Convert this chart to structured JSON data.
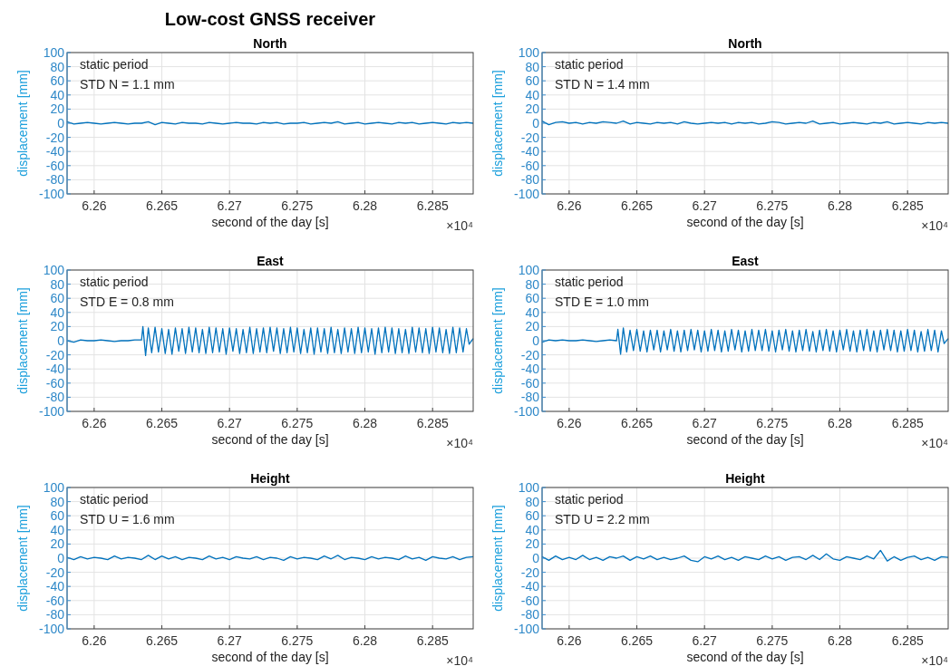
{
  "chart_data": [
    {
      "type": "line",
      "title": "Low-cost GNSS receiver",
      "subtitle": "North",
      "xlabel": "second of the day [s]",
      "ylabel": "displacement [mm]",
      "annotations": [
        "static period",
        "STD N = 1.1 mm",
        "×10⁴"
      ],
      "xlim": [
        6.258,
        6.288
      ],
      "xticks": [
        6.26,
        6.265,
        6.27,
        6.275,
        6.28,
        6.285
      ],
      "ylim": [
        -100,
        100
      ],
      "yticks": [
        -100,
        -80,
        -60,
        -40,
        -20,
        0,
        20,
        40,
        60,
        80,
        100
      ],
      "grid": true,
      "x": [
        6.258,
        6.2585,
        6.259,
        6.2595,
        6.26,
        6.2605,
        6.261,
        6.2615,
        6.262,
        6.2625,
        6.263,
        6.2635,
        6.264,
        6.2645,
        6.265,
        6.2655,
        6.266,
        6.2665,
        6.267,
        6.2675,
        6.268,
        6.2685,
        6.269,
        6.2695,
        6.27,
        6.2705,
        6.271,
        6.2715,
        6.272,
        6.2725,
        6.273,
        6.2735,
        6.274,
        6.2745,
        6.275,
        6.2755,
        6.276,
        6.2765,
        6.277,
        6.2775,
        6.278,
        6.2785,
        6.279,
        6.2795,
        6.28,
        6.2805,
        6.281,
        6.2815,
        6.282,
        6.2825,
        6.283,
        6.2835,
        6.284,
        6.2845,
        6.285,
        6.2855,
        6.286,
        6.2865,
        6.287,
        6.2875,
        6.288
      ],
      "series": [
        {
          "color": "#0072bd",
          "values": [
            2,
            -1,
            0,
            1,
            0,
            -1,
            0,
            1,
            0,
            -1,
            0,
            0,
            2,
            -2,
            1,
            0,
            -1,
            1,
            0,
            0,
            -1,
            1,
            0,
            -1,
            0,
            1,
            0,
            0,
            -1,
            1,
            0,
            1,
            -1,
            0,
            0,
            1,
            -1,
            0,
            1,
            0,
            2,
            -1,
            0,
            1,
            -1,
            0,
            1,
            0,
            -1,
            1,
            0,
            1,
            -1,
            0,
            1,
            0,
            -1,
            1,
            0,
            1,
            0
          ]
        }
      ]
    },
    {
      "type": "line",
      "title": "North",
      "xlabel": "second of the day [s]",
      "ylabel": "displacement [mm]",
      "annotations": [
        "static period",
        "STD N = 1.4 mm",
        "×10⁴"
      ],
      "xlim": [
        6.258,
        6.288
      ],
      "xticks": [
        6.26,
        6.265,
        6.27,
        6.275,
        6.28,
        6.285
      ],
      "ylim": [
        -100,
        100
      ],
      "yticks": [
        -100,
        -80,
        -60,
        -40,
        -20,
        0,
        20,
        40,
        60,
        80,
        100
      ],
      "grid": true,
      "x": [
        6.258,
        6.2585,
        6.259,
        6.2595,
        6.26,
        6.2605,
        6.261,
        6.2615,
        6.262,
        6.2625,
        6.263,
        6.2635,
        6.264,
        6.2645,
        6.265,
        6.2655,
        6.266,
        6.2665,
        6.267,
        6.2675,
        6.268,
        6.2685,
        6.269,
        6.2695,
        6.27,
        6.2705,
        6.271,
        6.2715,
        6.272,
        6.2725,
        6.273,
        6.2735,
        6.274,
        6.2745,
        6.275,
        6.2755,
        6.276,
        6.2765,
        6.277,
        6.2775,
        6.278,
        6.2785,
        6.279,
        6.2795,
        6.28,
        6.2805,
        6.281,
        6.2815,
        6.282,
        6.2825,
        6.283,
        6.2835,
        6.284,
        6.2845,
        6.285,
        6.2855,
        6.286,
        6.2865,
        6.287,
        6.2875,
        6.288
      ],
      "series": [
        {
          "color": "#0072bd",
          "values": [
            3,
            -2,
            1,
            2,
            0,
            1,
            -1,
            1,
            0,
            2,
            1,
            0,
            3,
            -1,
            1,
            0,
            -1,
            1,
            0,
            1,
            -1,
            2,
            0,
            -1,
            0,
            1,
            0,
            1,
            -1,
            1,
            0,
            1,
            -1,
            0,
            2,
            1,
            -1,
            0,
            1,
            0,
            3,
            -1,
            0,
            1,
            -1,
            0,
            1,
            0,
            -1,
            1,
            0,
            2,
            -1,
            0,
            1,
            0,
            -1,
            1,
            0,
            1,
            0
          ]
        }
      ]
    },
    {
      "type": "line",
      "title": "East",
      "xlabel": "second of the day [s]",
      "ylabel": "displacement [mm]",
      "annotations": [
        "static period",
        "STD E = 0.8 mm",
        "×10⁴"
      ],
      "xlim": [
        6.258,
        6.288
      ],
      "xticks": [
        6.26,
        6.265,
        6.27,
        6.275,
        6.28,
        6.285
      ],
      "ylim": [
        -100,
        100
      ],
      "yticks": [
        -100,
        -80,
        -60,
        -40,
        -20,
        0,
        20,
        40,
        60,
        80,
        100
      ],
      "grid": true,
      "x": [
        6.258,
        6.2585,
        6.259,
        6.2595,
        6.26,
        6.2605,
        6.261,
        6.2615,
        6.262,
        6.2625,
        6.263,
        6.2635,
        6.2636,
        6.2638,
        6.264,
        6.26425,
        6.2645,
        6.26475,
        6.265,
        6.26525,
        6.2655,
        6.26575,
        6.266,
        6.26625,
        6.2665,
        6.26675,
        6.267,
        6.26725,
        6.2675,
        6.26775,
        6.268,
        6.26825,
        6.2685,
        6.26875,
        6.269,
        6.26925,
        6.2695,
        6.26975,
        6.27,
        6.27025,
        6.2705,
        6.27075,
        6.271,
        6.27125,
        6.2715,
        6.27175,
        6.272,
        6.27225,
        6.2725,
        6.27275,
        6.273,
        6.27325,
        6.2735,
        6.27375,
        6.274,
        6.27425,
        6.2745,
        6.27475,
        6.275,
        6.27525,
        6.2755,
        6.27575,
        6.276,
        6.27625,
        6.2765,
        6.27675,
        6.277,
        6.27725,
        6.2775,
        6.27775,
        6.278,
        6.27825,
        6.2785,
        6.27875,
        6.279,
        6.27925,
        6.2795,
        6.27975,
        6.28,
        6.28025,
        6.2805,
        6.28075,
        6.281,
        6.28125,
        6.2815,
        6.28175,
        6.282,
        6.28225,
        6.2825,
        6.28275,
        6.283,
        6.28325,
        6.2835,
        6.28375,
        6.284,
        6.28425,
        6.2845,
        6.28475,
        6.285,
        6.28525,
        6.2855,
        6.28575,
        6.286,
        6.28625,
        6.2865,
        6.28675,
        6.287,
        6.28725,
        6.2875,
        6.2877,
        6.288
      ],
      "series": [
        {
          "color": "#0072bd",
          "values": [
            0,
            -2,
            1,
            0,
            0,
            1,
            0,
            -1,
            0,
            0,
            1,
            1,
            20,
            -21,
            18,
            -17,
            19,
            -16,
            17,
            -18,
            16,
            -19,
            18,
            -15,
            17,
            -18,
            19,
            -16,
            18,
            -17,
            16,
            -18,
            19,
            -17,
            18,
            -16,
            17,
            -19,
            18,
            -15,
            17,
            -18,
            16,
            -17,
            19,
            -18,
            17,
            -16,
            18,
            -17,
            19,
            -15,
            18,
            -18,
            17,
            -17,
            19,
            -16,
            18,
            -18,
            16,
            -17,
            18,
            -19,
            18,
            -16,
            17,
            -18,
            19,
            -17,
            16,
            -18,
            18,
            -16,
            17,
            -18,
            19,
            -17,
            18,
            -16,
            17,
            -19,
            18,
            -17,
            19,
            -16,
            18,
            -18,
            17,
            -17,
            16,
            -18,
            19,
            -16,
            18,
            -17,
            17,
            -18,
            19,
            -16,
            18,
            -17,
            16,
            -18,
            19,
            -17,
            18,
            -16,
            17,
            -5,
            3
          ]
        }
      ]
    },
    {
      "type": "line",
      "title": "East",
      "xlabel": "second of the day [s]",
      "ylabel": "displacement [mm]",
      "annotations": [
        "static period",
        "STD E = 1.0 mm",
        "×10⁴"
      ],
      "xlim": [
        6.258,
        6.288
      ],
      "xticks": [
        6.26,
        6.265,
        6.27,
        6.275,
        6.28,
        6.285
      ],
      "ylim": [
        -100,
        100
      ],
      "yticks": [
        -100,
        -80,
        -60,
        -40,
        -20,
        0,
        20,
        40,
        60,
        80,
        100
      ],
      "grid": true,
      "x": [
        6.258,
        6.2585,
        6.259,
        6.2595,
        6.26,
        6.2605,
        6.261,
        6.2615,
        6.262,
        6.2625,
        6.263,
        6.2635,
        6.2636,
        6.2638,
        6.264,
        6.26425,
        6.2645,
        6.26475,
        6.265,
        6.26525,
        6.2655,
        6.26575,
        6.266,
        6.26625,
        6.2665,
        6.26675,
        6.267,
        6.26725,
        6.2675,
        6.26775,
        6.268,
        6.26825,
        6.2685,
        6.26875,
        6.269,
        6.26925,
        6.2695,
        6.26975,
        6.27,
        6.27025,
        6.2705,
        6.27075,
        6.271,
        6.27125,
        6.2715,
        6.27175,
        6.272,
        6.27225,
        6.2725,
        6.27275,
        6.273,
        6.27325,
        6.2735,
        6.27375,
        6.274,
        6.27425,
        6.2745,
        6.27475,
        6.275,
        6.27525,
        6.2755,
        6.27575,
        6.276,
        6.27625,
        6.2765,
        6.27675,
        6.277,
        6.27725,
        6.2775,
        6.27775,
        6.278,
        6.27825,
        6.2785,
        6.27875,
        6.279,
        6.27925,
        6.2795,
        6.27975,
        6.28,
        6.28025,
        6.2805,
        6.28075,
        6.281,
        6.28125,
        6.2815,
        6.28175,
        6.282,
        6.28225,
        6.2825,
        6.28275,
        6.283,
        6.28325,
        6.2835,
        6.28375,
        6.284,
        6.28425,
        6.2845,
        6.28475,
        6.285,
        6.28525,
        6.2855,
        6.28575,
        6.286,
        6.28625,
        6.2865,
        6.28675,
        6.287,
        6.28725,
        6.2875,
        6.2877,
        6.288
      ],
      "series": [
        {
          "color": "#0072bd",
          "values": [
            -2,
            1,
            0,
            1,
            0,
            0,
            1,
            0,
            -1,
            0,
            1,
            0,
            16,
            -19,
            18,
            -16,
            15,
            -14,
            16,
            -15,
            14,
            -16,
            15,
            -13,
            15,
            -16,
            14,
            -13,
            16,
            -15,
            14,
            -16,
            15,
            -14,
            16,
            -13,
            15,
            -16,
            14,
            -15,
            16,
            -14,
            15,
            -16,
            14,
            -15,
            16,
            -13,
            15,
            -16,
            14,
            -15,
            16,
            -14,
            15,
            -14,
            16,
            -15,
            14,
            -16,
            15,
            -13,
            16,
            -15,
            14,
            -16,
            15,
            -14,
            16,
            -15,
            13,
            -16,
            15,
            -14,
            16,
            -15,
            14,
            -16,
            15,
            -13,
            16,
            -15,
            14,
            -16,
            15,
            -14,
            16,
            -15,
            14,
            -16,
            15,
            -13,
            16,
            -14,
            15,
            -16,
            14,
            -15,
            16,
            -14,
            15,
            -16,
            13,
            -15,
            16,
            -14,
            15,
            -16,
            14,
            -4,
            3
          ]
        }
      ]
    },
    {
      "type": "line",
      "title": "Height",
      "xlabel": "second of the day [s]",
      "ylabel": "displacement [mm]",
      "annotations": [
        "static period",
        "STD U = 1.6 mm",
        "×10⁴"
      ],
      "xlim": [
        6.258,
        6.288
      ],
      "xticks": [
        6.26,
        6.265,
        6.27,
        6.275,
        6.28,
        6.285
      ],
      "ylim": [
        -100,
        100
      ],
      "yticks": [
        -100,
        -80,
        -60,
        -40,
        -20,
        0,
        20,
        40,
        60,
        80,
        100
      ],
      "grid": true,
      "x": [
        6.258,
        6.2585,
        6.259,
        6.2595,
        6.26,
        6.2605,
        6.261,
        6.2615,
        6.262,
        6.2625,
        6.263,
        6.2635,
        6.264,
        6.2645,
        6.265,
        6.2655,
        6.266,
        6.2665,
        6.267,
        6.2675,
        6.268,
        6.2685,
        6.269,
        6.2695,
        6.27,
        6.2705,
        6.271,
        6.2715,
        6.272,
        6.2725,
        6.273,
        6.2735,
        6.274,
        6.2745,
        6.275,
        6.2755,
        6.276,
        6.2765,
        6.277,
        6.2775,
        6.278,
        6.2785,
        6.279,
        6.2795,
        6.28,
        6.2805,
        6.281,
        6.2815,
        6.282,
        6.2825,
        6.283,
        6.2835,
        6.284,
        6.2845,
        6.285,
        6.2855,
        6.286,
        6.2865,
        6.287,
        6.2875,
        6.288
      ],
      "series": [
        {
          "color": "#0072bd",
          "values": [
            1,
            -2,
            2,
            -1,
            1,
            0,
            -2,
            3,
            -1,
            1,
            0,
            -2,
            4,
            -2,
            3,
            -1,
            2,
            -2,
            1,
            0,
            -2,
            3,
            -1,
            1,
            -2,
            2,
            0,
            -1,
            2,
            -2,
            1,
            0,
            -3,
            2,
            -1,
            1,
            0,
            -2,
            3,
            -1,
            4,
            -2,
            1,
            0,
            -2,
            2,
            -1,
            1,
            0,
            -2,
            3,
            -1,
            1,
            -3,
            2,
            0,
            -1,
            2,
            -2,
            1,
            2
          ]
        }
      ]
    },
    {
      "type": "line",
      "title": "Height",
      "xlabel": "second of the day [s]",
      "ylabel": "displacement [mm]",
      "annotations": [
        "static period",
        "STD U = 2.2 mm",
        "×10⁴"
      ],
      "xlim": [
        6.258,
        6.288
      ],
      "xticks": [
        6.26,
        6.265,
        6.27,
        6.275,
        6.28,
        6.285
      ],
      "ylim": [
        -100,
        100
      ],
      "yticks": [
        -100,
        -80,
        -60,
        -40,
        -20,
        0,
        20,
        40,
        60,
        80,
        100
      ],
      "grid": true,
      "x": [
        6.258,
        6.2585,
        6.259,
        6.2595,
        6.26,
        6.2605,
        6.261,
        6.2615,
        6.262,
        6.2625,
        6.263,
        6.2635,
        6.264,
        6.2645,
        6.265,
        6.2655,
        6.266,
        6.2665,
        6.267,
        6.2675,
        6.268,
        6.2685,
        6.269,
        6.2695,
        6.27,
        6.2705,
        6.271,
        6.2715,
        6.272,
        6.2725,
        6.273,
        6.2735,
        6.274,
        6.2745,
        6.275,
        6.2755,
        6.276,
        6.2765,
        6.277,
        6.2775,
        6.278,
        6.2785,
        6.279,
        6.2795,
        6.28,
        6.2805,
        6.281,
        6.2815,
        6.282,
        6.2825,
        6.283,
        6.2835,
        6.284,
        6.2845,
        6.285,
        6.2855,
        6.286,
        6.2865,
        6.287,
        6.2875,
        6.288
      ],
      "series": [
        {
          "color": "#0072bd",
          "values": [
            2,
            -3,
            3,
            -2,
            1,
            -2,
            4,
            -2,
            1,
            -3,
            2,
            0,
            3,
            -3,
            2,
            -1,
            3,
            -2,
            1,
            -2,
            0,
            3,
            -3,
            -5,
            2,
            -1,
            3,
            -2,
            1,
            -3,
            2,
            0,
            -2,
            3,
            -1,
            2,
            -3,
            1,
            2,
            -2,
            4,
            -2,
            6,
            -1,
            -3,
            2,
            0,
            -2,
            3,
            -1,
            11,
            -4,
            2,
            -3,
            1,
            3,
            -2,
            1,
            -3,
            2,
            1
          ]
        }
      ]
    }
  ]
}
